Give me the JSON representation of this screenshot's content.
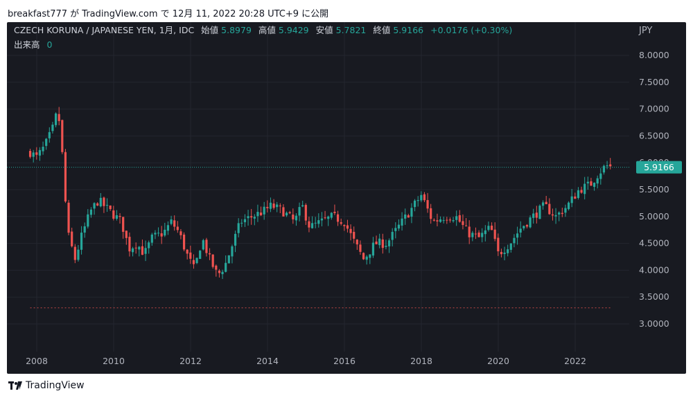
{
  "publish_line": "breakfast777 が TradingView.com で 12月 11, 2022 20:28 UTC+9 に公開",
  "brand": "TradingView",
  "legend": {
    "symbol": "CZECH KORUNA / JAPANESE YEN, 1月, IDC",
    "open_label": "始値",
    "open_value": "5.8979",
    "high_label": "高値",
    "high_value": "5.9429",
    "low_label": "安値",
    "low_value": "5.7821",
    "close_label": "終値",
    "close_value": "5.9166",
    "change": "+0.0176 (+0.30%)",
    "volume_label": "出来高",
    "volume_value": "0"
  },
  "last_price_label": "5.9166",
  "colors": {
    "background": "#181a21",
    "up": "#26a69a",
    "down": "#ef5350",
    "text": "#b2b5be",
    "grid": "#23262f",
    "price_line": "#26a69a"
  },
  "chart_data": {
    "type": "candlestick",
    "currency": "JPY",
    "interval": "1月",
    "ylim": [
      2.6,
      8.6
    ],
    "xlim": [
      2007.5,
      2023.5
    ],
    "y_ticks": [
      "8.0000",
      "7.5000",
      "7.0000",
      "6.5000",
      "6.0000",
      "5.5000",
      "5.0000",
      "4.5000",
      "4.0000",
      "3.5000",
      "3.0000"
    ],
    "x_ticks": [
      "2008",
      "2010",
      "2012",
      "2014",
      "2016",
      "2018",
      "2020",
      "2022"
    ],
    "last_price": 5.9166,
    "grid": true,
    "legend_position": "top-left",
    "anchors": [
      [
        2007.83,
        6.2
      ],
      [
        2008.0,
        6.1
      ],
      [
        2008.2,
        6.3
      ],
      [
        2008.4,
        6.6
      ],
      [
        2008.55,
        7.0
      ],
      [
        2008.65,
        6.3
      ],
      [
        2008.8,
        4.7
      ],
      [
        2009.0,
        4.2
      ],
      [
        2009.15,
        4.6
      ],
      [
        2009.4,
        5.1
      ],
      [
        2009.6,
        5.3
      ],
      [
        2009.9,
        5.1
      ],
      [
        2010.2,
        4.9
      ],
      [
        2010.4,
        4.4
      ],
      [
        2010.6,
        4.5
      ],
      [
        2010.8,
        4.3
      ],
      [
        2011.0,
        4.6
      ],
      [
        2011.3,
        4.7
      ],
      [
        2011.5,
        4.9
      ],
      [
        2011.7,
        4.7
      ],
      [
        2011.9,
        4.3
      ],
      [
        2012.1,
        4.0
      ],
      [
        2012.3,
        4.6
      ],
      [
        2012.5,
        4.2
      ],
      [
        2012.7,
        3.9
      ],
      [
        2012.9,
        4.1
      ],
      [
        2013.1,
        4.5
      ],
      [
        2013.3,
        4.9
      ],
      [
        2013.6,
        5.0
      ],
      [
        2013.9,
        5.1
      ],
      [
        2014.1,
        5.2
      ],
      [
        2014.4,
        5.1
      ],
      [
        2014.7,
        4.9
      ],
      [
        2014.9,
        5.2
      ],
      [
        2015.1,
        4.8
      ],
      [
        2015.4,
        4.9
      ],
      [
        2015.7,
        5.0
      ],
      [
        2016.0,
        4.9
      ],
      [
        2016.2,
        4.6
      ],
      [
        2016.5,
        4.2
      ],
      [
        2016.8,
        4.5
      ],
      [
        2017.1,
        4.5
      ],
      [
        2017.4,
        4.8
      ],
      [
        2017.7,
        5.1
      ],
      [
        2018.0,
        5.4
      ],
      [
        2018.3,
        4.9
      ],
      [
        2018.6,
        5.0
      ],
      [
        2018.9,
        5.0
      ],
      [
        2019.2,
        4.7
      ],
      [
        2019.5,
        4.6
      ],
      [
        2019.8,
        4.8
      ],
      [
        2020.0,
        4.3
      ],
      [
        2020.3,
        4.5
      ],
      [
        2020.6,
        4.8
      ],
      [
        2020.9,
        5.0
      ],
      [
        2021.2,
        5.2
      ],
      [
        2021.5,
        5.0
      ],
      [
        2021.8,
        5.2
      ],
      [
        2022.1,
        5.5
      ],
      [
        2022.4,
        5.6
      ],
      [
        2022.6,
        5.8
      ],
      [
        2022.8,
        5.95
      ],
      [
        2022.95,
        5.9166
      ]
    ]
  }
}
